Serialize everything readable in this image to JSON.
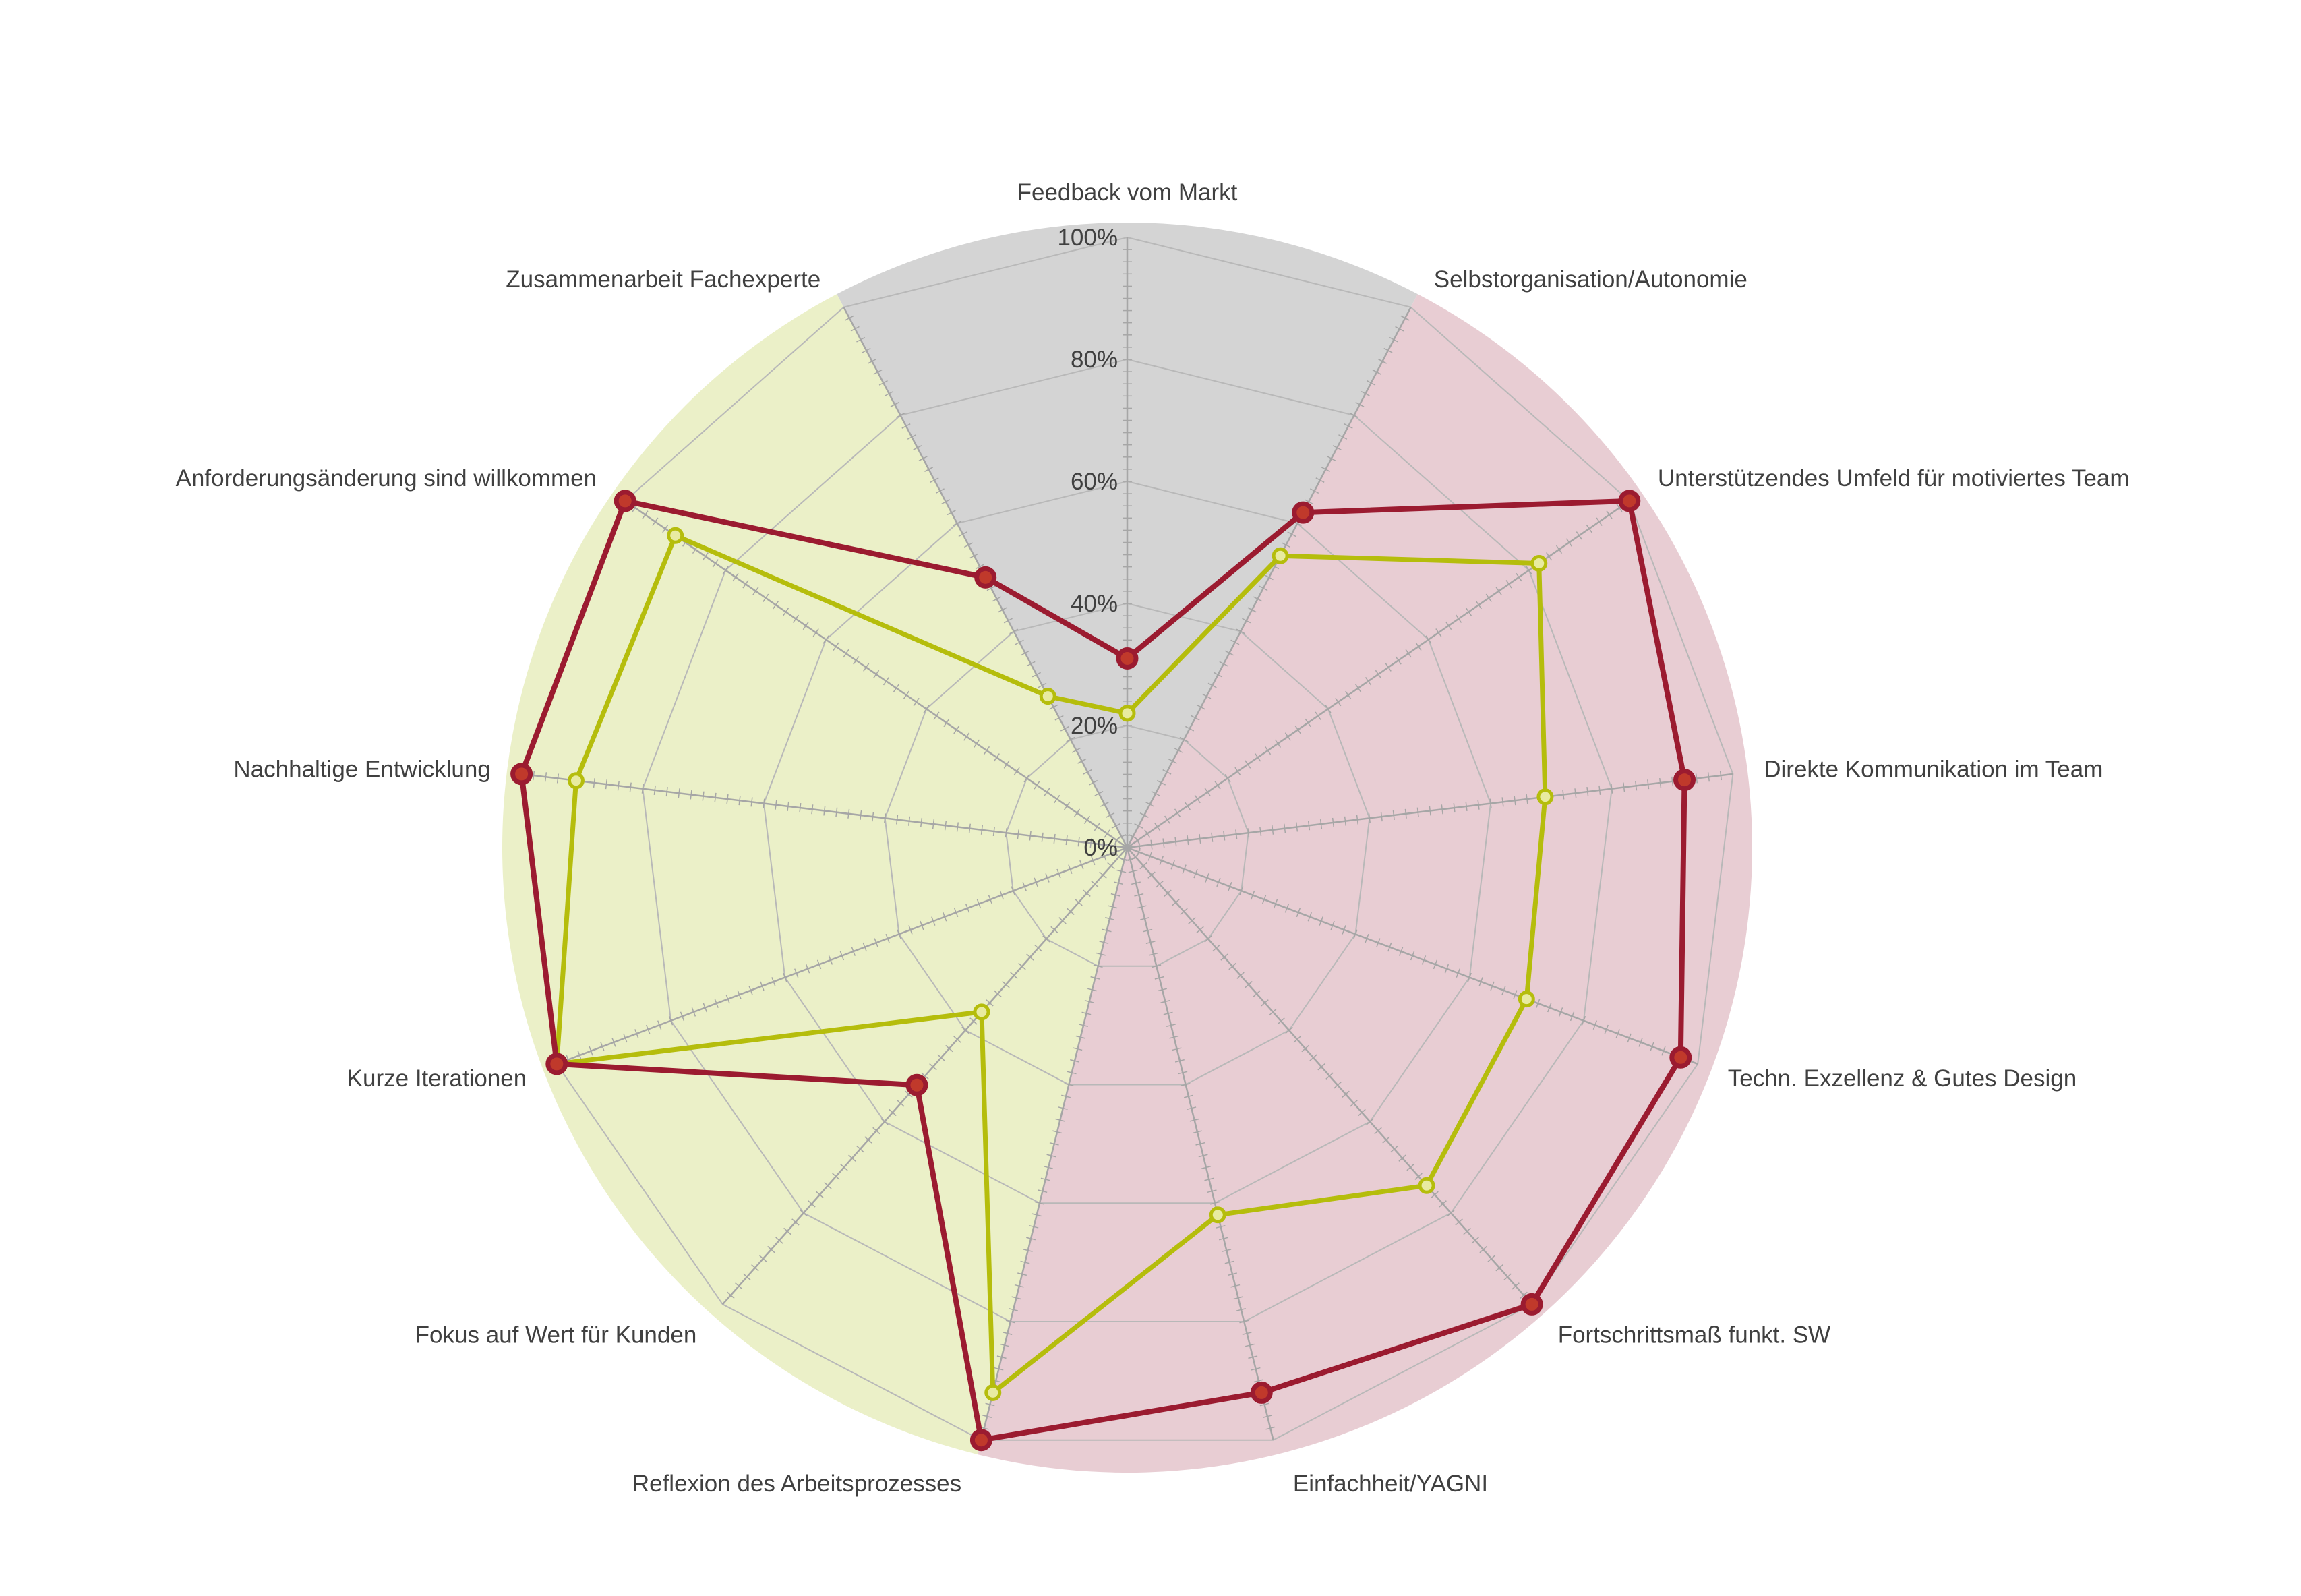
{
  "chart_data": {
    "type": "radar",
    "title": "",
    "axes": [
      "Feedback vom Markt",
      "Selbstorganisation/Autonomie",
      "Unterstützendes Umfeld für motiviertes Team",
      "Direkte Kommunikation im Team",
      "Techn. Exzellenz & Gutes Design",
      "Fortschrittsmaß funkt. SW",
      "Einfachheit/YAGNI",
      "Reflexion des Arbeitsprozesses",
      "Fokus auf Wert für Kunden",
      "Kurze Iterationen",
      "Nachhaltige Entwicklung",
      "Anforderungsänderung sind willkommen",
      "Zusammenarbeit Fachexperte"
    ],
    "radial_ticks": [
      "0%",
      "20%",
      "40%",
      "60%",
      "80%",
      "100%"
    ],
    "rlim": [
      0,
      100
    ],
    "grid": true,
    "series": [
      {
        "color": "#9b1b30",
        "marker_fill": "#c0392b",
        "values": [
          31,
          62,
          100,
          92,
          97,
          100,
          92,
          100,
          52,
          100,
          100,
          100,
          50
        ]
      },
      {
        "color": "#b5bd0c",
        "marker_fill": "#e8eba0",
        "values": [
          22,
          54,
          82,
          69,
          70,
          74,
          62,
          92,
          36,
          100,
          91,
          90,
          28
        ]
      }
    ],
    "background_sectors": [
      {
        "color": "#d4d4d4",
        "start_axis": 12,
        "end_axis": 1
      },
      {
        "color": "#e8cdd3",
        "start_axis": 1,
        "end_axis": 7
      },
      {
        "color": "#ebf0c8",
        "start_axis": 7,
        "end_axis": 12
      }
    ]
  }
}
